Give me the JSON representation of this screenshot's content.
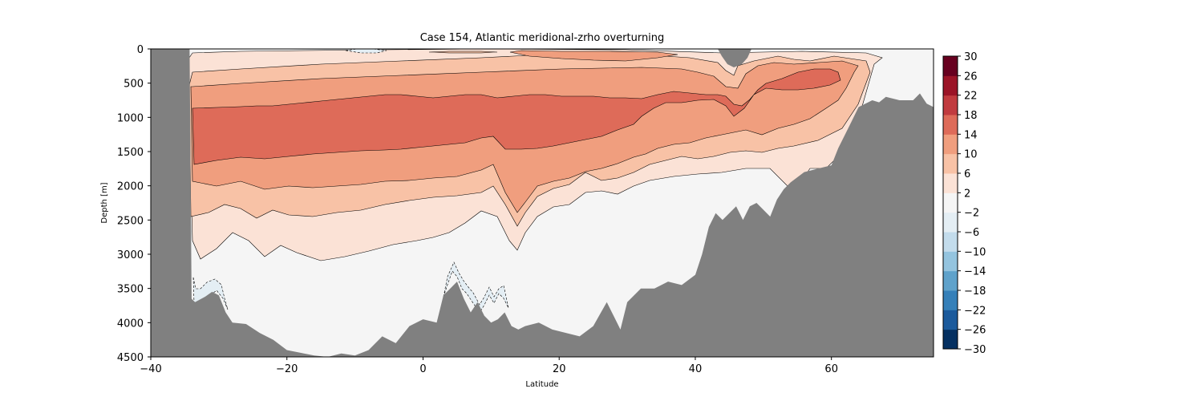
{
  "chart_data": {
    "type": "contourf",
    "title": "Case 154, Atlantic meridional-zrho overturning",
    "xlabel": "Latitude",
    "ylabel": "Depth [m]",
    "xlim": [
      -40,
      75
    ],
    "ylim": [
      4500,
      0
    ],
    "x_ticks": [
      -40,
      -20,
      0,
      20,
      40,
      60
    ],
    "x_tick_labels": [
      "−40",
      "−20",
      "0",
      "20",
      "40",
      "60"
    ],
    "y_ticks": [
      0,
      500,
      1000,
      1500,
      2000,
      2500,
      3000,
      3500,
      4000,
      4500
    ],
    "y_tick_labels": [
      "0",
      "500",
      "1000",
      "1500",
      "2000",
      "2500",
      "3000",
      "3500",
      "4000",
      "4500"
    ],
    "colorbar": {
      "levels": [
        -30,
        -26,
        -22,
        -18,
        -14,
        -10,
        -6,
        -2,
        2,
        6,
        10,
        14,
        18,
        22,
        26,
        30
      ],
      "tick_values": [
        30,
        26,
        22,
        18,
        14,
        10,
        6,
        2,
        -2,
        -6,
        -10,
        -14,
        -18,
        -22,
        -26,
        -30
      ],
      "tick_labels": [
        "30",
        "26",
        "22",
        "18",
        "14",
        "10",
        "6",
        "2",
        "−2",
        "−6",
        "−10",
        "−14",
        "−18",
        "−22",
        "−26",
        "−30"
      ],
      "colors": [
        "#053061",
        "#1b5a9c",
        "#3580b9",
        "#5fa2cb",
        "#94c4df",
        "#c3dcec",
        "#e4eef4",
        "#f5f5f5",
        "#fbe2d6",
        "#f8c2a6",
        "#f09e7e",
        "#de6b59",
        "#c13b3f",
        "#9b1427",
        "#67001f"
      ]
    },
    "bathymetry_color": "#808080",
    "bathymetry": {
      "lat": [
        -40,
        -34.3,
        -34.0,
        -33.5,
        -32,
        -31,
        -30,
        -29,
        -28,
        -26,
        -24,
        -22,
        -20,
        -18,
        -16,
        -14,
        -12,
        -10,
        -8,
        -6,
        -4,
        -2,
        0,
        2,
        3,
        4,
        5,
        6,
        7,
        8,
        9,
        10,
        11,
        12,
        13,
        14,
        15,
        17,
        19,
        21,
        23,
        25,
        27,
        28,
        29,
        30,
        32,
        34,
        36,
        38,
        40,
        41,
        42,
        43,
        44,
        45,
        46,
        47,
        48,
        49,
        50,
        51,
        52,
        53,
        54,
        56,
        58,
        60,
        61,
        62,
        63,
        64,
        65,
        66,
        67,
        68,
        70,
        72,
        73,
        74,
        75
      ],
      "depth": [
        0,
        0,
        3650,
        3700,
        3620,
        3550,
        3600,
        3850,
        4000,
        4020,
        4150,
        4250,
        4400,
        4440,
        4480,
        4500,
        4450,
        4480,
        4400,
        4200,
        4300,
        4050,
        3950,
        4000,
        3600,
        3500,
        3400,
        3650,
        3850,
        3700,
        3900,
        4000,
        3950,
        3850,
        4050,
        4100,
        4050,
        4000,
        4100,
        4150,
        4200,
        4050,
        3700,
        3900,
        4100,
        3700,
        3500,
        3500,
        3400,
        3450,
        3300,
        3000,
        2600,
        2400,
        2500,
        2400,
        2300,
        2500,
        2300,
        2250,
        2350,
        2450,
        2200,
        2050,
        1950,
        1800,
        1750,
        1700,
        1450,
        1250,
        1050,
        850,
        800,
        750,
        780,
        700,
        750,
        750,
        650,
        800,
        850
      ]
    },
    "levels_shown": {
      "max_cell_core": "14 to 18 Sv band at ~1000-1500 m from -34 to 35 latitude",
      "north_core": "14 to 18 Sv at ~500-900 m near 50-60 latitude",
      "deep_cell": "-2 to 2 Sv below ~3000 m"
    }
  }
}
